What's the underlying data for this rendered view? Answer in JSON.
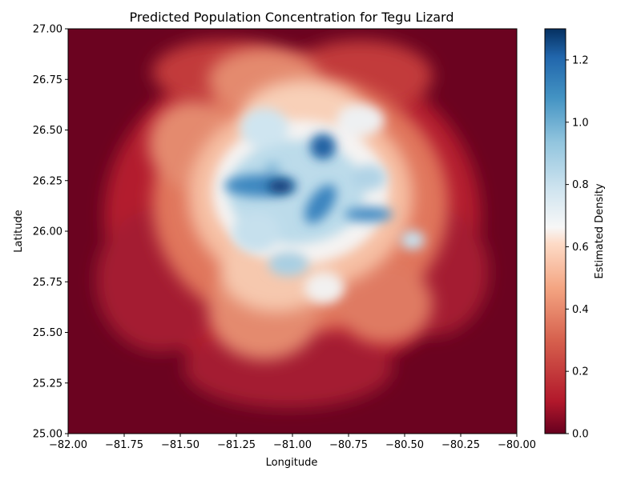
{
  "chart_data": {
    "type": "heatmap",
    "title": "Predicted Population Concentration for Tegu Lizard",
    "xlabel": "Longitude",
    "ylabel": "Latitude",
    "xlim": [
      -82.0,
      -80.0
    ],
    "ylim": [
      25.0,
      27.0
    ],
    "x_ticks": [
      "−82.00",
      "−81.75",
      "−81.50",
      "−81.25",
      "−81.00",
      "−80.75",
      "−80.50",
      "−80.25",
      "−80.00"
    ],
    "x_tick_values": [
      -82.0,
      -81.75,
      -81.5,
      -81.25,
      -81.0,
      -80.75,
      -80.5,
      -80.25,
      -80.0
    ],
    "y_ticks": [
      "25.00",
      "25.25",
      "25.50",
      "25.75",
      "26.00",
      "26.25",
      "26.50",
      "26.75",
      "27.00"
    ],
    "y_tick_values": [
      25.0,
      25.25,
      25.5,
      25.75,
      26.0,
      26.25,
      26.5,
      26.75,
      27.0
    ],
    "colorbar": {
      "label": "Estimated Density",
      "colormap": "RdBu",
      "range": [
        0.0,
        1.3
      ],
      "ticks": [
        "0.0",
        "0.2",
        "0.4",
        "0.6",
        "0.8",
        "1.0",
        "1.2"
      ],
      "tick_values": [
        0.0,
        0.2,
        0.4,
        0.6,
        0.8,
        1.0,
        1.2
      ]
    },
    "grid": false,
    "density_hotspots": [
      {
        "lon": -81.05,
        "lat": 26.22,
        "value": 1.3
      },
      {
        "lon": -81.18,
        "lat": 26.22,
        "value": 1.05
      },
      {
        "lon": -80.87,
        "lat": 26.42,
        "value": 1.1
      },
      {
        "lon": -80.85,
        "lat": 26.18,
        "value": 1.05
      },
      {
        "lon": -80.92,
        "lat": 26.08,
        "value": 1.0
      },
      {
        "lon": -80.68,
        "lat": 26.07,
        "value": 0.95
      },
      {
        "lon": -80.58,
        "lat": 26.1,
        "value": 0.9
      },
      {
        "lon": -81.12,
        "lat": 26.5,
        "value": 0.8
      },
      {
        "lon": -81.05,
        "lat": 25.83,
        "value": 0.9
      },
      {
        "lon": -80.92,
        "lat": 25.9,
        "value": 0.8
      },
      {
        "lon": -81.2,
        "lat": 25.98,
        "value": 0.75
      },
      {
        "lon": -80.68,
        "lat": 26.27,
        "value": 0.8
      },
      {
        "lon": -80.47,
        "lat": 25.95,
        "value": 0.75
      },
      {
        "lon": -80.62,
        "lat": 26.57,
        "value": 0.6
      }
    ]
  }
}
